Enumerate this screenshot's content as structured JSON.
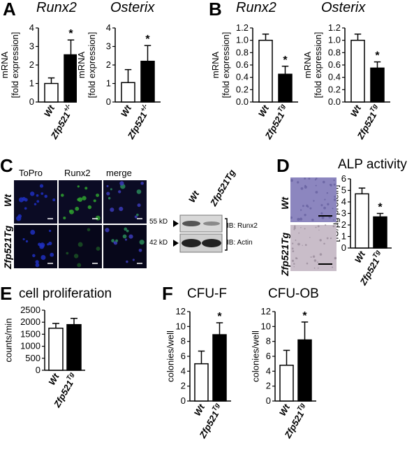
{
  "panels": {
    "A": "A",
    "B": "B",
    "C": "C",
    "D": "D",
    "E": "E",
    "F": "F"
  },
  "colors": {
    "wt": "#ffffff",
    "tg": "#000000",
    "dapi": "#1f2fbf",
    "runx2": "#2fa22f",
    "merge": "#3a2a8a",
    "alp_wt": "#8c86bf",
    "alp_tg": "#c9bdc9"
  },
  "panelA": {
    "charts": [
      {
        "title": "Runx2",
        "ylabel": "mRNA\n[fold expression]",
        "categories": [
          "Wt",
          "Zfp521+/-"
        ]
      },
      {
        "title": "Osterix",
        "ylabel": "mRNA\n[fold expression]",
        "categories": [
          "Wt",
          "Zfp521+/-"
        ]
      }
    ]
  },
  "panelB": {
    "charts": [
      {
        "title": "Runx2",
        "ylabel": "mRNA\n[fold expression]",
        "categories": [
          "Wt",
          "Zfp521Tg"
        ]
      },
      {
        "title": "Osterix",
        "ylabel": "mRNA\n[fold expression]",
        "categories": [
          "Wt",
          "Zfp521Tg"
        ]
      }
    ]
  },
  "panelC": {
    "col_labels": [
      "ToPro",
      "Runx2",
      "merge"
    ],
    "row_labels": [
      "Wt",
      "Zfp521Tg"
    ],
    "wb_lanes": [
      "Wt",
      "Zfp521Tg"
    ],
    "wb_rows": [
      {
        "mw": "55 kD",
        "ib": "IB: Runx2"
      },
      {
        "mw": "42 kD",
        "ib": "IB: Actin"
      }
    ]
  },
  "panelD": {
    "title": "ALP activity",
    "ylabel": "[IU/µg protein]",
    "row_labels": [
      "Wt",
      "Zfp521Tg"
    ],
    "categories": [
      "Wt",
      "Zfp521Tg"
    ]
  },
  "panelE": {
    "title": "cell proliferation",
    "ylabel": "counts/min",
    "categories": [
      "Wt",
      "Zfp521Tg"
    ]
  },
  "panelF": {
    "charts": [
      {
        "title": "CFU-F",
        "ylabel": "colonies/well",
        "categories": [
          "Wt",
          "Zfp521Tg"
        ]
      },
      {
        "title": "CFU-OB",
        "ylabel": "colonies/well",
        "categories": [
          "Wt",
          "Zfp521Tg"
        ]
      }
    ]
  },
  "chart_data": [
    {
      "type": "bar",
      "title": "Runx2",
      "ylabel": "mRNA [fold expression]",
      "categories": [
        "Wt",
        "Zfp521+/-"
      ],
      "values": [
        1.0,
        2.55
      ],
      "errors": [
        0.3,
        0.8
      ],
      "ylim": [
        0,
        4
      ],
      "yticks": [
        0,
        1,
        2,
        3,
        4
      ],
      "significant": [
        false,
        true
      ]
    },
    {
      "type": "bar",
      "title": "Osterix",
      "ylabel": "mRNA [fold expression]",
      "categories": [
        "Wt",
        "Zfp521+/-"
      ],
      "values": [
        1.05,
        2.2
      ],
      "errors": [
        0.7,
        0.85
      ],
      "ylim": [
        0,
        4
      ],
      "yticks": [
        0,
        1,
        2,
        3,
        4
      ],
      "significant": [
        false,
        true
      ]
    },
    {
      "type": "bar",
      "title": "Runx2",
      "ylabel": "mRNA [fold expression]",
      "categories": [
        "Wt",
        "Zfp521Tg"
      ],
      "values": [
        1.0,
        0.45
      ],
      "errors": [
        0.1,
        0.13
      ],
      "ylim": [
        0,
        1.2
      ],
      "yticks": [
        0.0,
        0.2,
        0.4,
        0.6,
        0.8,
        1.0,
        1.2
      ],
      "significant": [
        false,
        true
      ]
    },
    {
      "type": "bar",
      "title": "Osterix",
      "ylabel": "mRNA [fold expression]",
      "categories": [
        "Wt",
        "Zfp521Tg"
      ],
      "values": [
        1.0,
        0.55
      ],
      "errors": [
        0.1,
        0.1
      ],
      "ylim": [
        0,
        1.2
      ],
      "yticks": [
        0.0,
        0.2,
        0.4,
        0.6,
        0.8,
        1.0,
        1.2
      ],
      "significant": [
        false,
        true
      ]
    },
    {
      "type": "bar",
      "title": "ALP activity",
      "ylabel": "[IU/µg protein]",
      "categories": [
        "Wt",
        "Zfp521Tg"
      ],
      "values": [
        4.7,
        2.7
      ],
      "errors": [
        0.5,
        0.3
      ],
      "ylim": [
        0,
        6
      ],
      "yticks": [
        0,
        1,
        2,
        3,
        4,
        5,
        6
      ],
      "significant": [
        false,
        true
      ]
    },
    {
      "type": "bar",
      "title": "cell proliferation",
      "ylabel": "counts/min",
      "categories": [
        "Wt",
        "Zfp521Tg"
      ],
      "values": [
        1750,
        1900
      ],
      "errors": [
        200,
        260
      ],
      "ylim": [
        0,
        2500
      ],
      "yticks": [
        0,
        500,
        1000,
        1500,
        2000,
        2500
      ],
      "significant": [
        false,
        false
      ]
    },
    {
      "type": "bar",
      "title": "CFU-F",
      "ylabel": "colonies/well",
      "categories": [
        "Wt",
        "Zfp521Tg"
      ],
      "values": [
        5.0,
        8.9
      ],
      "errors": [
        1.7,
        1.6
      ],
      "ylim": [
        0,
        12
      ],
      "yticks": [
        0,
        2,
        4,
        6,
        8,
        10,
        12
      ],
      "significant": [
        false,
        true
      ]
    },
    {
      "type": "bar",
      "title": "CFU-OB",
      "ylabel": "colonies/well",
      "categories": [
        "Wt",
        "Zfp521Tg"
      ],
      "values": [
        4.8,
        8.2
      ],
      "errors": [
        2.0,
        2.4
      ],
      "ylim": [
        0,
        12
      ],
      "yticks": [
        0,
        2,
        4,
        6,
        8,
        10,
        12
      ],
      "significant": [
        false,
        true
      ]
    }
  ],
  "sig_mark": "*"
}
